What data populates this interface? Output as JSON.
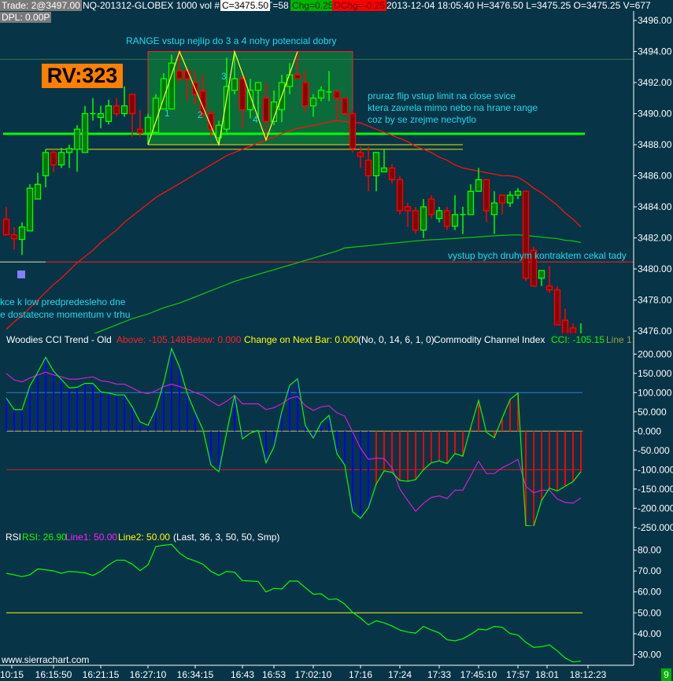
{
  "header": {
    "trade": "Trade: 2@3497.00",
    "symbol": "NQ-201312-GLOBEX  1000 vol  #1",
    "close": "C=3475.50",
    "ticks": "T=58",
    "chg": "Chg=0.25",
    "dchg": "DChg=-0.25",
    "info": "2013-12-04 18:05:40 H=3476.50 L=3475.25 O=3475.25 V=677",
    "dpl": "DPL: 0.00P"
  },
  "badge": {
    "rv": "RV:323",
    "bar_counter": "9"
  },
  "annotations": {
    "range": "RANGE  vstup nejlíp do 3  a 4 nohy potencial dobry",
    "flip1": "pruraz flip vstup limit na close svice",
    "flip2": "ktera zavrela mimo nebo na hrane range",
    "flip3": "coz by se zrejme nechytlo",
    "exit": "vystup bych druhym kontraktem cekal tady",
    "left1": "kce k low predpredesleho dne",
    "left2": "e dostatecne momentum v trhu",
    "legs": [
      "1",
      "2",
      "3",
      "4"
    ],
    "watermark": "www.sierrachart.com"
  },
  "cci_legend": {
    "title": "Woodies CCI Trend - Old",
    "above": "Above: -105.148",
    "below": "Below: 0.000",
    "change": "Change on Next Bar: 0.000",
    "params": "(No, 0, 14, 6, 1, 0)",
    "name": "Commodity Channel Index",
    "cci": "CCI: -105.15",
    "line1": "Line 1:"
  },
  "rsi_legend": {
    "title": "RSI",
    "rsi": "RSI: 26.90",
    "line1": "Line1: 50.00",
    "line2": "Line2: 50.00",
    "params": "(Last, 36, 3, 50, 50, Smp)"
  },
  "colors": {
    "background": "#073447",
    "up_body": "#007800",
    "up_edge": "#00ff00",
    "down_body": "#8b0000",
    "down_edge": "#ff0000",
    "annotation": "#19dce8",
    "range_fill": "#0b6b3a",
    "cci_up": "#0000ff",
    "cci_down": "#ff0000",
    "cci_line": "#00ff00",
    "cci_slow": "#d020d0",
    "rsi_line": "#00ff00",
    "rsi_mid": "#ffff00"
  },
  "chart_data": [
    {
      "type": "candlestick",
      "ylim": [
        3476,
        3496
      ],
      "yticks": [
        "3496.00",
        "3494.00",
        "3492.00",
        "3490.00",
        "3488.00",
        "3486.00",
        "3484.00",
        "3482.00",
        "3480.00",
        "3478.00",
        "3476.00"
      ],
      "ytick_values": [
        3496,
        3494,
        3492,
        3490,
        3488,
        3486,
        3484,
        3482,
        3480,
        3478,
        3476
      ],
      "xticks": [
        {
          "bar": 0.7,
          "label": "10:15"
        },
        {
          "bar": 6,
          "label": "16:15:50"
        },
        {
          "bar": 12,
          "label": "16:21:15"
        },
        {
          "bar": 18,
          "label": "16:27:10"
        },
        {
          "bar": 24,
          "label": "16:34:15"
        },
        {
          "bar": 30,
          "label": "16:43"
        },
        {
          "bar": 34,
          "label": "16:53"
        },
        {
          "bar": 39,
          "label": "17:02:10"
        },
        {
          "bar": 45,
          "label": "17:16"
        },
        {
          "bar": 50,
          "label": "17:24"
        },
        {
          "bar": 55,
          "label": "17:33"
        },
        {
          "bar": 60,
          "label": "17:45:10"
        },
        {
          "bar": 65,
          "label": "17:57"
        },
        {
          "bar": 68.7,
          "label": "18:01"
        },
        {
          "bar": 73.9,
          "label": "18:12:23"
        }
      ],
      "ohlc": [
        [
          3483.2,
          3484.0,
          3482.2,
          3482.2
        ],
        [
          3482.2,
          3482.7,
          3481.25,
          3481.95
        ],
        [
          3481.9,
          3483.0,
          3480.9,
          3482.7
        ],
        [
          3482.45,
          3485.45,
          3482.45,
          3485.2
        ],
        [
          3484.5,
          3486.2,
          3484.5,
          3485.45
        ],
        [
          3486.0,
          3487.7,
          3485.25,
          3487.5
        ],
        [
          3487.5,
          3487.7,
          3486.25,
          3486.7
        ],
        [
          3486.7,
          3487.8,
          3486.5,
          3487.5
        ],
        [
          3487.5,
          3488.0,
          3486.5,
          3487.75
        ],
        [
          3487.7,
          3489.25,
          3486.25,
          3489.0
        ],
        [
          3487.5,
          3490.5,
          3487.5,
          3490.0
        ],
        [
          3490.0,
          3491.0,
          3489.55,
          3490.0
        ],
        [
          3489.75,
          3490.5,
          3489.05,
          3490.0
        ],
        [
          3489.5,
          3490.9,
          3489.3,
          3490.5
        ],
        [
          3490.5,
          3491.0,
          3489.8,
          3490.0
        ],
        [
          3490.0,
          3491.75,
          3489.8,
          3490.5
        ],
        [
          3491.25,
          3491.25,
          3488.5,
          3490.0
        ],
        [
          3489.0,
          3490.25,
          3488.5,
          3488.75
        ],
        [
          3488.75,
          3490.0,
          3488.0,
          3489.75
        ],
        [
          3488.8,
          3491.25,
          3488.8,
          3491.0
        ],
        [
          3490.3,
          3492.6,
          3490.3,
          3492.25
        ],
        [
          3490.3,
          3493.8,
          3490.3,
          3493.25
        ],
        [
          3492.75,
          3494.0,
          3492.0,
          3492.25
        ],
        [
          3492.75,
          3493.0,
          3490.8,
          3492.25
        ],
        [
          3492.0,
          3492.75,
          3490.6,
          3491.25
        ],
        [
          3491.45,
          3492.5,
          3489.7,
          3490.0
        ],
        [
          3490.0,
          3490.25,
          3488.5,
          3489.0
        ],
        [
          3488.45,
          3489.55,
          3488.0,
          3489.25
        ],
        [
          3489.0,
          3493.6,
          3488.8,
          3491.75
        ],
        [
          3491.5,
          3494.0,
          3491.25,
          3492.25
        ],
        [
          3492.25,
          3492.5,
          3489.05,
          3490.25
        ],
        [
          3490.25,
          3492.25,
          3489.7,
          3491.5
        ],
        [
          3491.5,
          3492.0,
          3489.7,
          3492.0
        ],
        [
          3491.0,
          3492.0,
          3488.3,
          3489.5
        ],
        [
          3489.5,
          3491.5,
          3489.25,
          3490.75
        ],
        [
          3490.25,
          3492.5,
          3489.45,
          3492.0
        ],
        [
          3491.75,
          3493.25,
          3491.25,
          3492.5
        ],
        [
          3492.5,
          3494.0,
          3492.25,
          3492.25
        ],
        [
          3492.0,
          3492.75,
          3490.1,
          3490.5
        ],
        [
          3490.5,
          3491.25,
          3489.8,
          3491.0
        ],
        [
          3491.0,
          3491.75,
          3490.8,
          3491.5
        ],
        [
          3491.4,
          3492.75,
          3490.8,
          3491.4
        ],
        [
          3491.45,
          3491.45,
          3489.55,
          3491.0
        ],
        [
          3491.0,
          3491.0,
          3489.8,
          3490.0
        ],
        [
          3490.0,
          3490.25,
          3487.5,
          3487.75
        ],
        [
          3487.5,
          3487.9,
          3486.5,
          3487.25
        ],
        [
          3487.0,
          3487.9,
          3485.0,
          3486.0
        ],
        [
          3486.0,
          3487.5,
          3485.0,
          3487.5
        ],
        [
          3486.25,
          3487.75,
          3486.25,
          3486.5
        ],
        [
          3486.5,
          3486.75,
          3485.5,
          3485.75
        ],
        [
          3485.75,
          3486.0,
          3483.5,
          3483.75
        ],
        [
          3484.0,
          3484.25,
          3482.7,
          3483.75
        ],
        [
          3483.75,
          3484.0,
          3482.25,
          3482.5
        ],
        [
          3482.5,
          3484.5,
          3482.0,
          3484.0
        ],
        [
          3484.5,
          3484.75,
          3483.25,
          3483.5
        ],
        [
          3483.25,
          3484.0,
          3483.0,
          3483.75
        ],
        [
          3483.75,
          3484.0,
          3482.5,
          3482.75
        ],
        [
          3482.75,
          3484.75,
          3482.5,
          3483.5
        ],
        [
          3483.5,
          3484.0,
          3482.25,
          3483.5
        ],
        [
          3483.5,
          3485.45,
          3483.5,
          3485.0
        ],
        [
          3485.0,
          3486.5,
          3485.0,
          3485.75
        ],
        [
          3485.75,
          3485.75,
          3483.0,
          3483.75
        ],
        [
          3483.5,
          3485.0,
          3482.25,
          3484.25
        ],
        [
          3484.75,
          3484.75,
          3483.5,
          3484.25
        ],
        [
          3484.25,
          3485.0,
          3484.0,
          3484.75
        ],
        [
          3484.75,
          3485.2,
          3484.5,
          3485.0
        ],
        [
          3485.0,
          3485.0,
          3479.2,
          3479.4
        ],
        [
          3481.2,
          3481.45,
          3478.9,
          3478.9
        ],
        [
          3479.4,
          3479.9,
          3478.9,
          3479.9
        ],
        [
          3478.9,
          3480.2,
          3478.45,
          3478.65
        ],
        [
          3478.65,
          3478.9,
          3476.4,
          3476.4
        ],
        [
          3476.7,
          3477.45,
          3475.5,
          3475.5
        ],
        [
          3476.2,
          3476.5,
          3475.25,
          3475.5
        ],
        [
          3475.25,
          3476.5,
          3475.25,
          3475.5
        ]
      ],
      "ma_red": [
        3476.1,
        3476.6,
        3477.0,
        3477.5,
        3478.0,
        3478.5,
        3479.0,
        3479.4,
        3479.9,
        3480.4,
        3480.8,
        3481.2,
        3481.7,
        3482.1,
        3482.5,
        3483.0,
        3483.4,
        3483.8,
        3484.2,
        3484.6,
        3484.9,
        3485.2,
        3485.5,
        3485.8,
        3486.1,
        3486.4,
        3486.7,
        3487.0,
        3487.3,
        3487.5,
        3487.7,
        3487.9,
        3488.1,
        3488.3,
        3488.5,
        3488.7,
        3488.9,
        3489.05,
        3489.15,
        3489.25,
        3489.35,
        3489.45,
        3489.55,
        3489.5,
        3489.45,
        3489.4,
        3489.2,
        3489.0,
        3488.8,
        3488.6,
        3488.4,
        3488.2,
        3487.9,
        3487.7,
        3487.5,
        3487.2,
        3487.0,
        3486.7,
        3486.5,
        3486.4,
        3486.3,
        3486.2,
        3486.1,
        3486.0,
        3486.0,
        3485.9,
        3485.6,
        3485.2,
        3484.9,
        3484.5,
        3484.1,
        3483.6,
        3483.2,
        3482.7
      ],
      "ma_green": [
        3473.8,
        3474.0,
        3474.2,
        3474.35,
        3474.55,
        3474.7,
        3474.9,
        3475.1,
        3475.25,
        3475.45,
        3475.6,
        3475.8,
        3476.0,
        3476.2,
        3476.4,
        3476.6,
        3476.8,
        3476.95,
        3477.1,
        3477.3,
        3477.5,
        3477.65,
        3477.8,
        3478.0,
        3478.2,
        3478.4,
        3478.6,
        3478.8,
        3479.0,
        3479.2,
        3479.35,
        3479.5,
        3479.65,
        3479.8,
        3479.95,
        3480.1,
        3480.25,
        3480.4,
        3480.55,
        3480.7,
        3480.85,
        3481.0,
        3481.15,
        3481.35,
        3481.4,
        3481.45,
        3481.5,
        3481.55,
        3481.6,
        3481.65,
        3481.7,
        3481.75,
        3481.8,
        3481.85,
        3481.88,
        3481.9,
        3481.93,
        3481.96,
        3482.0,
        3482.03,
        3482.06,
        3482.1,
        3482.13,
        3482.16,
        3482.18,
        3482.2,
        3482.15,
        3482.1,
        3482.05,
        3482.0,
        3481.95,
        3481.85,
        3481.8,
        3481.7
      ],
      "levels": [
        {
          "price": 3493.5,
          "from_bar": -1,
          "to_bar": 80,
          "color": "#2f7a4a",
          "kind": "thin"
        },
        {
          "price": 3488.7,
          "from_bar": -0.4,
          "to_bar": 73.5,
          "color": "#00ff00",
          "kind": "thick"
        },
        {
          "price": 3488.0,
          "from_bar": 18,
          "to_bar": 58,
          "color": "#e8e800",
          "kind": "thin"
        },
        {
          "price": 3487.7,
          "from_bar": 5,
          "to_bar": 58,
          "color": "#e8e800",
          "kind": "thin"
        },
        {
          "price": 3480.45,
          "from_bar": -1,
          "to_bar": 5,
          "color": "#e0e0c0",
          "kind": "thin"
        },
        {
          "price": 3480.45,
          "from_bar": 5,
          "to_bar": 80,
          "color": "#ff2020",
          "kind": "thin"
        }
      ],
      "range_box": {
        "from_bar": 18,
        "to_bar": 44,
        "high": 3494.0,
        "low": 3488.0
      },
      "zigzag": [
        [
          18,
          3488.0
        ],
        [
          22,
          3494.0
        ],
        [
          27,
          3488.0
        ],
        [
          29,
          3494.0
        ],
        [
          33,
          3488.3
        ],
        [
          37,
          3494.0
        ]
      ]
    },
    {
      "type": "bar+line",
      "name": "Commodity Channel Index",
      "ylim": [
        -250,
        220
      ],
      "yticks": [
        "200.000",
        "150.000",
        "100.000",
        "50.000",
        "0.000",
        "-50.000",
        "-100.000",
        "-150.000",
        "-200.000",
        "-250.000"
      ],
      "ytick_values": [
        200,
        150,
        100,
        50,
        0,
        -50,
        -100,
        -150,
        -200,
        -250
      ],
      "reference_lines": [
        {
          "value": 100,
          "color": "#2a80d0"
        },
        {
          "value": 0,
          "color": "#c8b860"
        },
        {
          "value": -100,
          "color": "#d02020"
        }
      ],
      "trend_segments": [
        {
          "from_bar": 0,
          "to_bar": 46,
          "trend": "up"
        },
        {
          "from_bar": 47,
          "to_bar": 73,
          "trend": "down"
        }
      ],
      "cci": [
        86,
        56,
        56,
        118,
        153,
        192,
        156,
        134,
        112,
        114,
        124,
        124,
        102,
        99,
        94,
        94,
        63,
        24,
        15,
        58,
        126,
        214,
        167,
        97,
        48,
        3,
        -88,
        -105,
        -3,
        93,
        -20,
        -5,
        2,
        -82,
        -41,
        51,
        119,
        136,
        14,
        -18,
        22,
        41,
        -58,
        -88,
        -209,
        -226,
        -199,
        -137,
        -103,
        -107,
        -128,
        -130,
        -126,
        -100,
        -82,
        -77,
        -84,
        -58,
        -65,
        10,
        80,
        -3,
        -17,
        34,
        82,
        99,
        -245,
        -247,
        -180,
        -148,
        -155,
        -143,
        -131,
        -105.15
      ],
      "slow_cci": [
        150,
        133,
        128,
        138,
        146,
        153,
        146,
        141,
        135,
        135,
        138,
        141,
        131,
        128,
        122,
        122,
        112,
        102,
        97,
        105,
        116,
        122,
        116,
        109,
        100,
        93,
        78,
        66,
        78,
        93,
        71,
        71,
        71,
        56,
        61,
        71,
        85,
        90,
        66,
        54,
        63,
        66,
        48,
        39,
        -2,
        -44,
        -73,
        -70,
        -71,
        -95,
        -150,
        -180,
        -208,
        -187,
        -172,
        -168,
        -175,
        -153,
        -153,
        -116,
        -78,
        -110,
        -110,
        -95,
        -85,
        -73,
        -143,
        -160,
        -153,
        -153,
        -176,
        -185,
        -187,
        -173
      ]
    },
    {
      "type": "line",
      "name": "RSI",
      "ylim": [
        26,
        84
      ],
      "yticks": [
        "80.00",
        "70.00",
        "60.00",
        "50.00",
        "40.00",
        "30.00"
      ],
      "ytick_values": [
        80,
        70,
        60,
        50,
        40,
        30
      ],
      "reference_lines": [
        {
          "value": 50,
          "color": "#ffff00"
        }
      ],
      "rsi": [
        68.9,
        68.2,
        67.3,
        68.2,
        71.0,
        70.6,
        70.0,
        68.9,
        69.8,
        69.5,
        69.1,
        67.9,
        69.8,
        72.9,
        75.2,
        75.2,
        73.3,
        70.2,
        72.9,
        81.7,
        82.3,
        82.7,
        78.6,
        76.0,
        74.8,
        73.2,
        69.8,
        67.9,
        69.8,
        69.4,
        65.4,
        65.2,
        65.0,
        60.0,
        61.7,
        61.4,
        65.2,
        65.2,
        62.0,
        58.9,
        59.1,
        56.4,
        56.6,
        54.2,
        50.2,
        47.5,
        44.2,
        46.2,
        45.2,
        43.7,
        41.8,
        40.8,
        40.3,
        43.5,
        41.8,
        40.4,
        37.1,
        36.6,
        37.6,
        39.7,
        42.2,
        41.8,
        43.5,
        43.1,
        40.1,
        39.4,
        35.9,
        33.5,
        33.8,
        34.7,
        31.8,
        28.4,
        26.5,
        26.9
      ]
    }
  ]
}
